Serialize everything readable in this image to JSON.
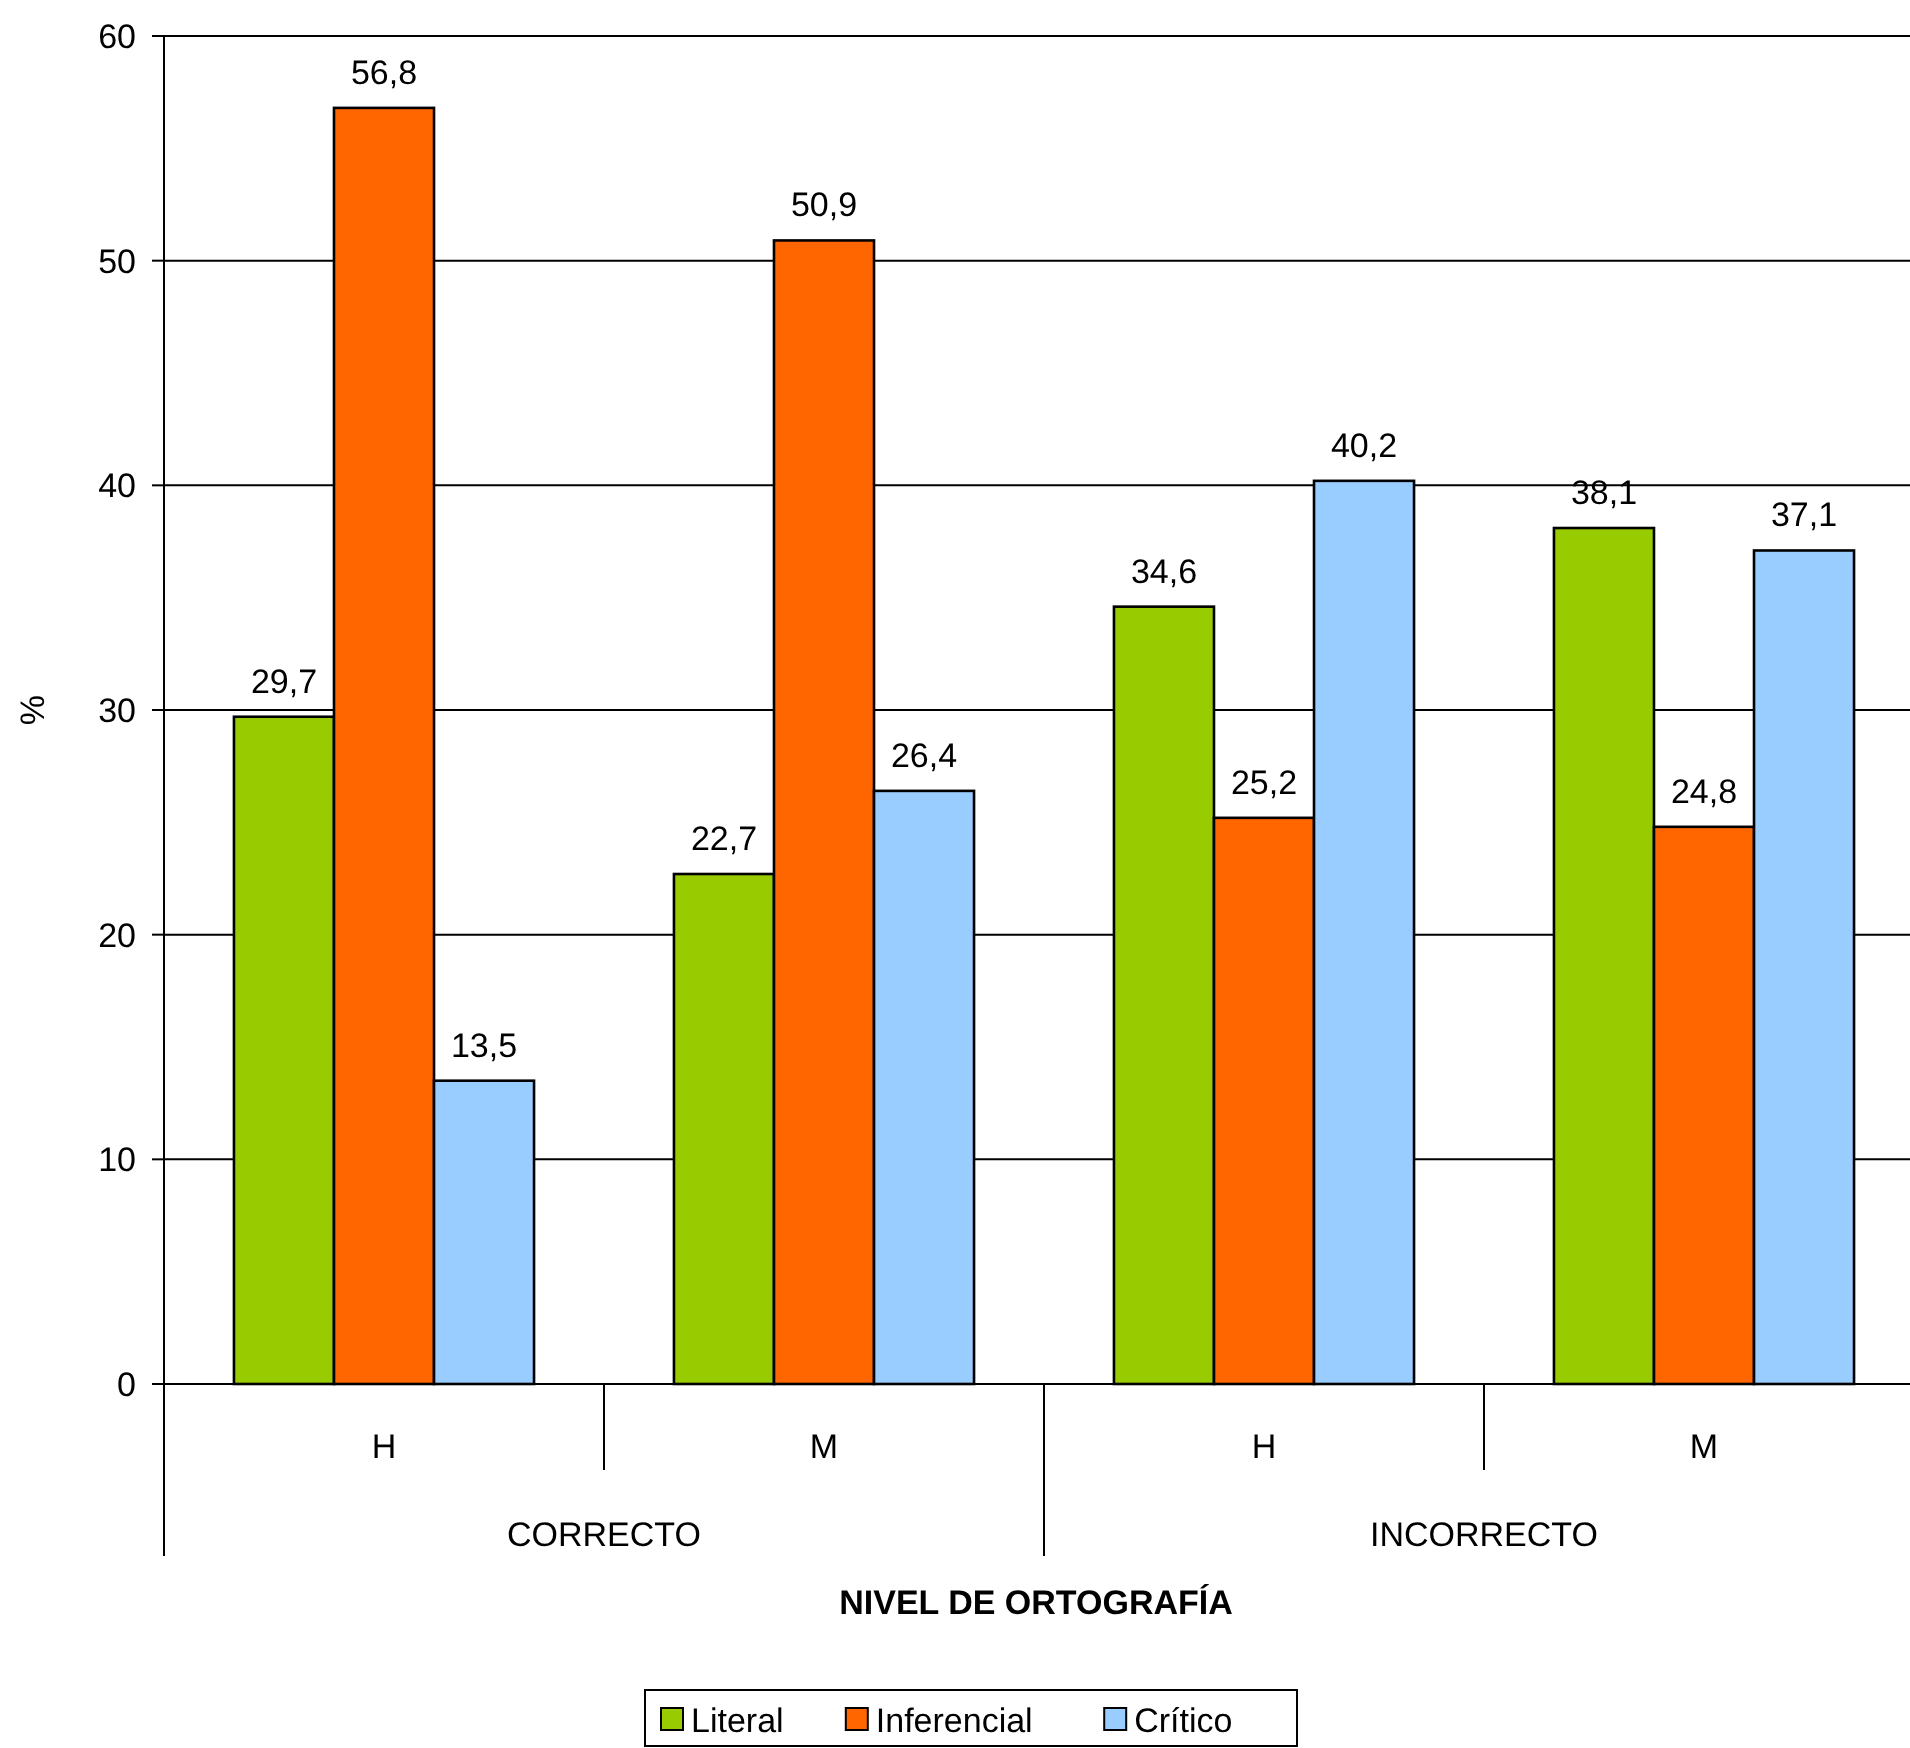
{
  "chart_data": {
    "type": "bar",
    "xlabel": "NIVEL DE ORTOGRAFÍA",
    "ylabel": "%",
    "categories": [
      "H",
      "M",
      "H",
      "M"
    ],
    "series": [
      {
        "name": "Literal",
        "color": "#99cc00",
        "values": [
          29.7,
          22.7,
          34.6,
          38.1
        ],
        "value_labels": [
          "29,7",
          "22,7",
          "34,6",
          "38,1"
        ]
      },
      {
        "name": "Inferencial",
        "color": "#ff6600",
        "values": [
          56.8,
          50.9,
          25.2,
          24.8
        ],
        "value_labels": [
          "56,8",
          "50,9",
          "25,2",
          "24,8"
        ]
      },
      {
        "name": "Crítico",
        "color": "#99ccff",
        "values": [
          13.5,
          26.4,
          40.2,
          37.1
        ],
        "value_labels": [
          "13,5",
          "26,4",
          "40,2",
          "37,1"
        ]
      }
    ],
    "annotations": [
      "CORRECTO",
      "INCORRECTO"
    ],
    "ylim": [
      0,
      60
    ],
    "yticks": [
      0,
      10,
      20,
      30,
      40,
      50,
      60
    ],
    "grid": "y",
    "legend": "bottom"
  }
}
